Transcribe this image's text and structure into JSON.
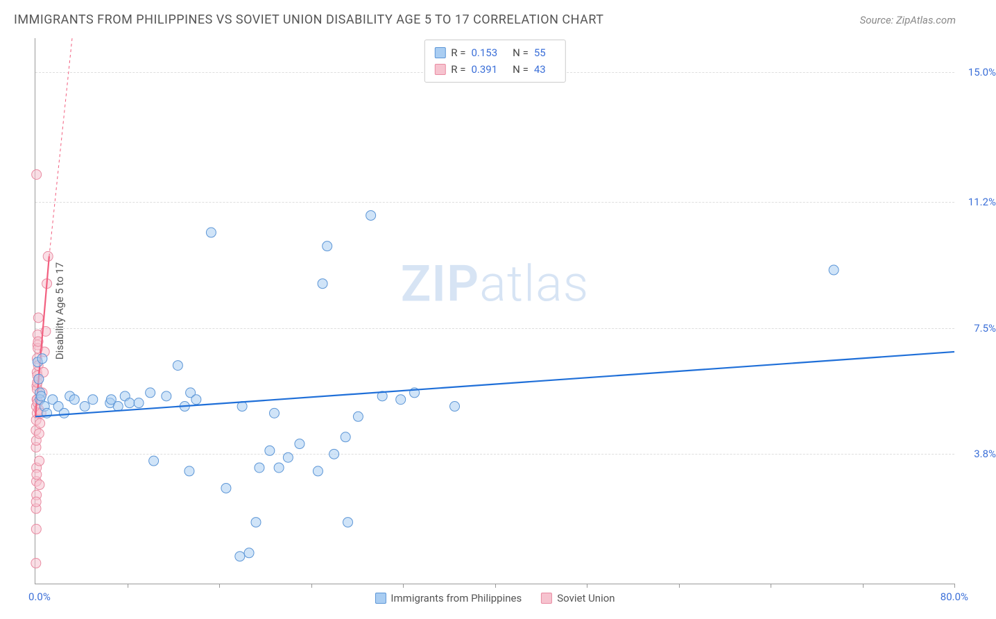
{
  "title": "IMMIGRANTS FROM PHILIPPINES VS SOVIET UNION DISABILITY AGE 5 TO 17 CORRELATION CHART",
  "source_label": "Source: ZipAtlas.com",
  "y_axis_title": "Disability Age 5 to 17",
  "watermark": {
    "bold": "ZIP",
    "light": "atlas"
  },
  "chart": {
    "type": "scatter",
    "xlim": [
      0,
      80
    ],
    "ylim": [
      0,
      16
    ],
    "x_min_label": "0.0%",
    "x_max_label": "80.0%",
    "y_ticks": [
      {
        "v": 3.8,
        "label": "3.8%"
      },
      {
        "v": 7.5,
        "label": "7.5%"
      },
      {
        "v": 11.2,
        "label": "11.2%"
      },
      {
        "v": 15.0,
        "label": "15.0%"
      }
    ],
    "x_minor_ticks": [
      8,
      16,
      24,
      32,
      40,
      48,
      56,
      64,
      72,
      80
    ],
    "background_color": "#ffffff",
    "grid_color": "#dddddd",
    "marker_radius": 7,
    "marker_opacity": 0.55,
    "trend_width": 2.2
  },
  "series": {
    "philippines": {
      "label": "Immigrants from Philippines",
      "color_fill": "#a9cdf2",
      "color_stroke": "#5b95d6",
      "r": "0.153",
      "n": "55",
      "trend": {
        "x1": 0,
        "y1": 4.9,
        "x2": 80,
        "y2": 6.8,
        "color": "#1f6fd8"
      },
      "points": [
        [
          0.2,
          6.5
        ],
        [
          0.3,
          6.0
        ],
        [
          0.4,
          5.6
        ],
        [
          0.4,
          5.4
        ],
        [
          0.5,
          5.5
        ],
        [
          0.6,
          6.6
        ],
        [
          0.8,
          5.2
        ],
        [
          1.0,
          5.0
        ],
        [
          1.5,
          5.4
        ],
        [
          2.0,
          5.2
        ],
        [
          2.5,
          5.0
        ],
        [
          3.0,
          5.5
        ],
        [
          3.4,
          5.4
        ],
        [
          4.3,
          5.2
        ],
        [
          5.0,
          5.4
        ],
        [
          6.5,
          5.3
        ],
        [
          6.6,
          5.4
        ],
        [
          7.2,
          5.2
        ],
        [
          7.8,
          5.5
        ],
        [
          8.2,
          5.3
        ],
        [
          9.0,
          5.3
        ],
        [
          10.0,
          5.6
        ],
        [
          10.3,
          3.6
        ],
        [
          11.4,
          5.5
        ],
        [
          12.4,
          6.4
        ],
        [
          13.0,
          5.2
        ],
        [
          13.4,
          3.3
        ],
        [
          13.5,
          5.6
        ],
        [
          15.3,
          10.3
        ],
        [
          14.0,
          5.4
        ],
        [
          16.6,
          2.8
        ],
        [
          17.8,
          0.8
        ],
        [
          18.6,
          0.9
        ],
        [
          18.0,
          5.2
        ],
        [
          19.2,
          1.8
        ],
        [
          19.5,
          3.4
        ],
        [
          20.4,
          3.9
        ],
        [
          20.8,
          5.0
        ],
        [
          21.2,
          3.4
        ],
        [
          22.0,
          3.7
        ],
        [
          23.0,
          4.1
        ],
        [
          24.6,
          3.3
        ],
        [
          25.0,
          8.8
        ],
        [
          25.4,
          9.9
        ],
        [
          26.0,
          3.8
        ],
        [
          27.0,
          4.3
        ],
        [
          28.1,
          4.9
        ],
        [
          29.2,
          10.8
        ],
        [
          27.2,
          1.8
        ],
        [
          30.2,
          5.5
        ],
        [
          31.8,
          5.4
        ],
        [
          33.0,
          5.6
        ],
        [
          36.5,
          5.2
        ],
        [
          69.5,
          9.2
        ]
      ]
    },
    "soviet": {
      "label": "Soviet Union",
      "color_fill": "#f6c3cf",
      "color_stroke": "#e98aa1",
      "r": "0.391",
      "n": "43",
      "trend": {
        "x1": 0,
        "y1": 4.9,
        "x2": 1.2,
        "y2": 9.6,
        "color": "#f25f7f",
        "dashed_ext": {
          "x2": 3.2,
          "y2": 16
        }
      },
      "points": [
        [
          0.05,
          4.5
        ],
        [
          0.06,
          4.0
        ],
        [
          0.07,
          4.8
        ],
        [
          0.08,
          5.2
        ],
        [
          0.08,
          4.2
        ],
        [
          0.09,
          3.0
        ],
        [
          0.1,
          3.4
        ],
        [
          0.1,
          2.6
        ],
        [
          0.11,
          3.2
        ],
        [
          0.12,
          5.8
        ],
        [
          0.13,
          5.4
        ],
        [
          0.14,
          6.2
        ],
        [
          0.14,
          5.0
        ],
        [
          0.15,
          6.6
        ],
        [
          0.15,
          5.7
        ],
        [
          0.16,
          5.4
        ],
        [
          0.17,
          5.9
        ],
        [
          0.18,
          6.1
        ],
        [
          0.19,
          7.0
        ],
        [
          0.2,
          5.3
        ],
        [
          0.2,
          7.3
        ],
        [
          0.22,
          6.9
        ],
        [
          0.24,
          7.1
        ],
        [
          0.25,
          6.4
        ],
        [
          0.26,
          7.8
        ],
        [
          0.28,
          6.0
        ],
        [
          0.3,
          5.1
        ],
        [
          0.32,
          4.4
        ],
        [
          0.34,
          3.6
        ],
        [
          0.36,
          2.9
        ],
        [
          0.05,
          0.6
        ],
        [
          0.06,
          2.2
        ],
        [
          0.07,
          2.4
        ],
        [
          0.08,
          1.6
        ],
        [
          0.4,
          4.7
        ],
        [
          0.5,
          5.0
        ],
        [
          0.6,
          5.6
        ],
        [
          0.7,
          6.2
        ],
        [
          0.8,
          6.8
        ],
        [
          0.9,
          7.4
        ],
        [
          1.0,
          8.8
        ],
        [
          1.1,
          9.6
        ],
        [
          0.1,
          12.0
        ]
      ]
    }
  },
  "legend_top_text": {
    "r_label": "R =",
    "n_label": "N ="
  }
}
